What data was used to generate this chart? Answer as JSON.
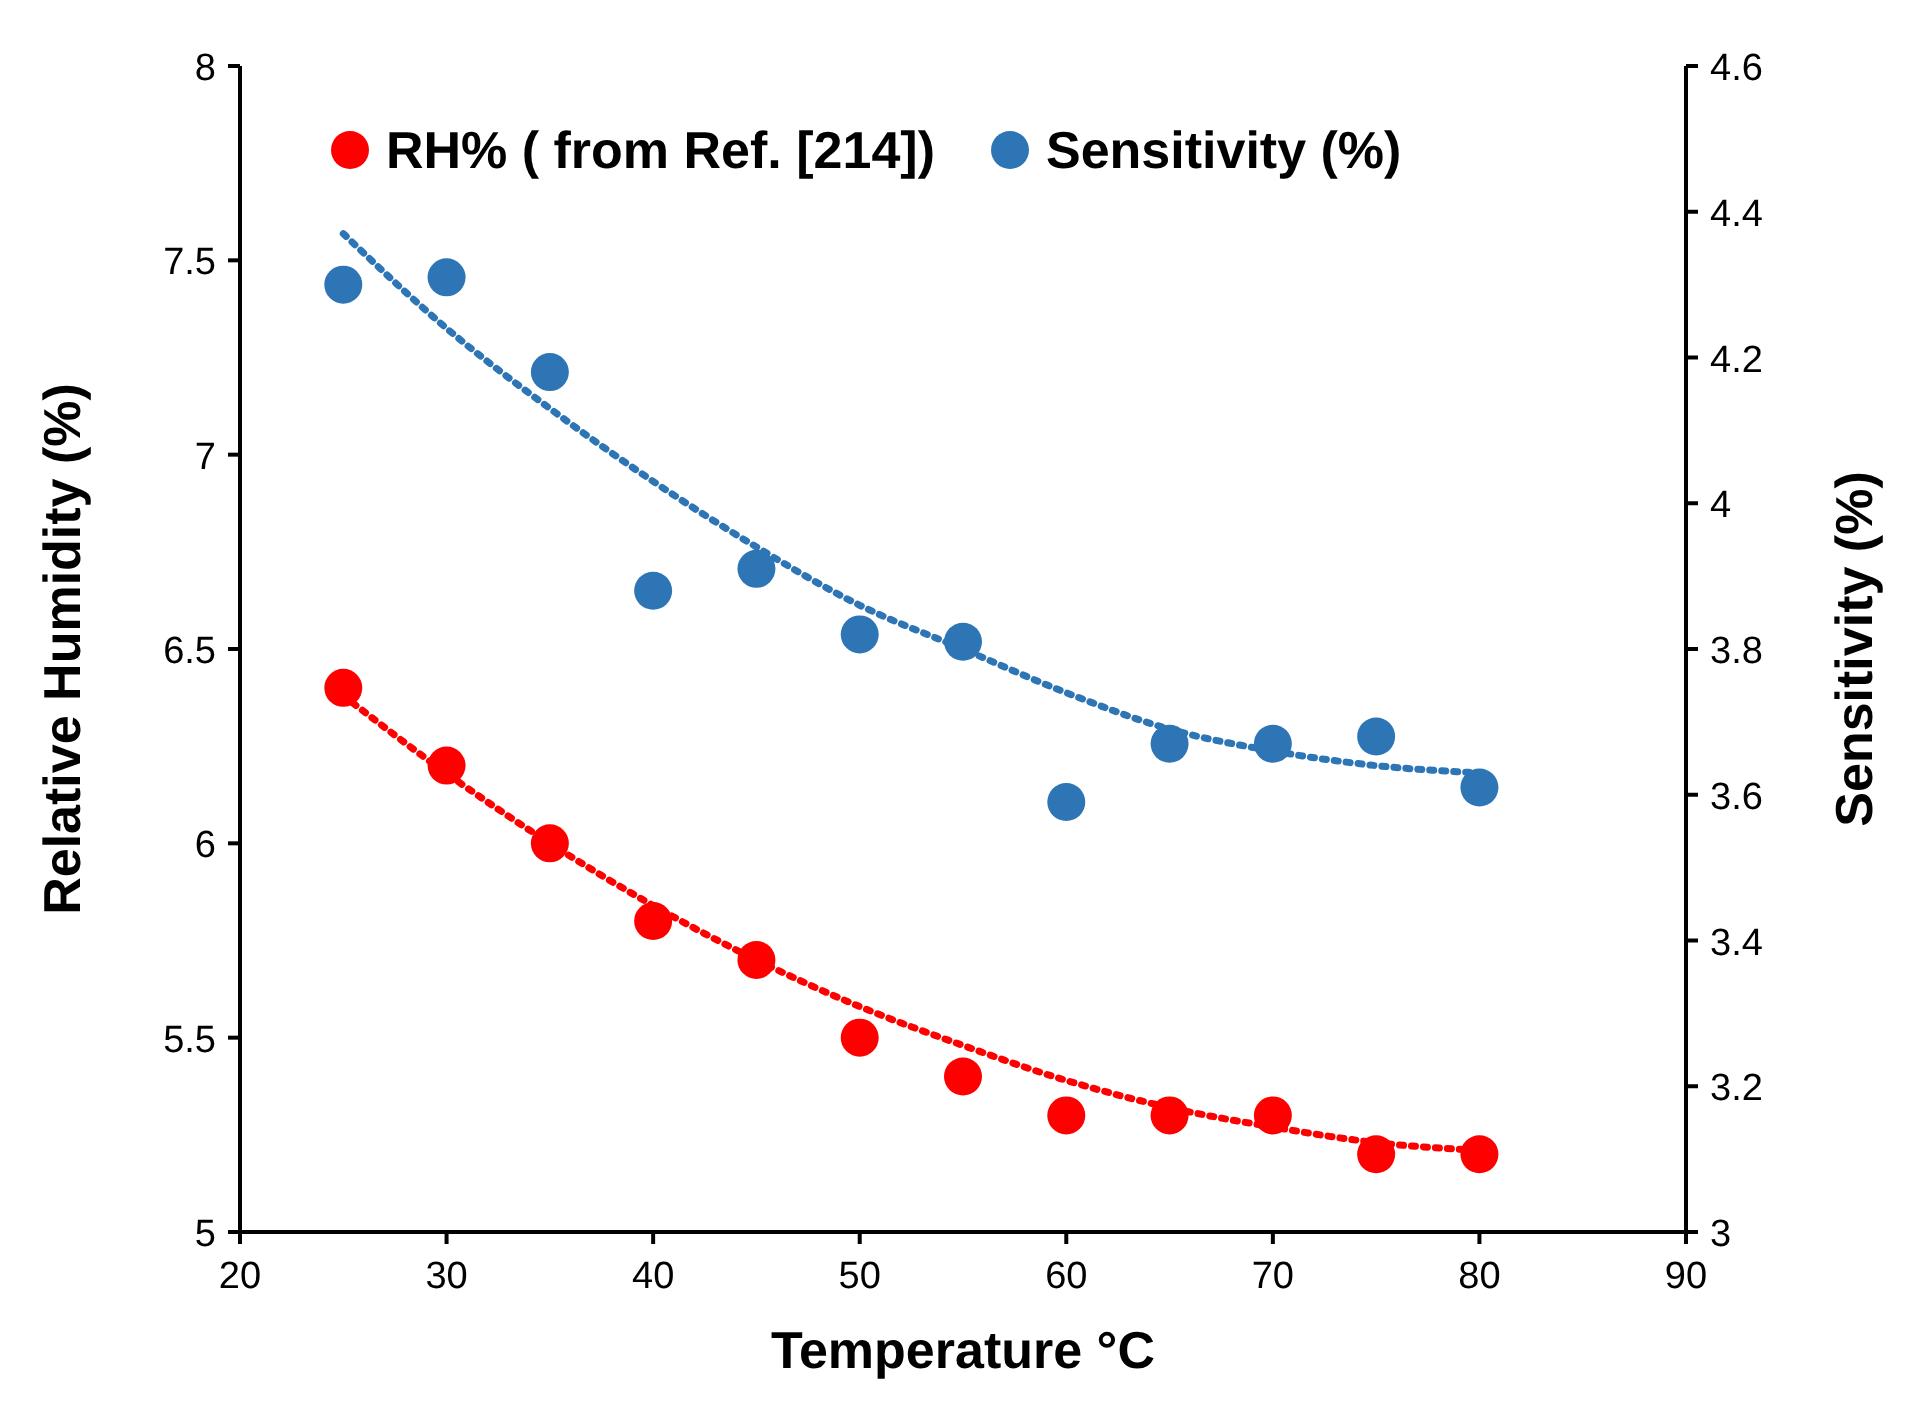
{
  "chart_data": {
    "type": "scatter",
    "xlabel": "Temperature °C",
    "ylabel": "Relative Humidity (%)",
    "y2label": "Sensitivity (%)",
    "xlim": [
      20,
      90
    ],
    "xticks": [
      20,
      30,
      40,
      50,
      60,
      70,
      80,
      90
    ],
    "ylim": [
      5,
      8
    ],
    "yticks": [
      5,
      5.5,
      6,
      6.5,
      7,
      7.5,
      8
    ],
    "y2lim": [
      3,
      4.6
    ],
    "y2ticks": [
      3,
      3.2,
      3.4,
      3.6,
      3.8,
      4,
      4.2,
      4.4,
      4.6
    ],
    "legend": "top",
    "grid": false,
    "x": [
      25,
      30,
      35,
      40,
      45,
      50,
      55,
      60,
      65,
      70,
      75,
      80
    ],
    "series": [
      {
        "name": "RH% ( from Ref. [214])",
        "color": "#ff0000",
        "marker": "circle",
        "values": [
          6.4,
          6.2,
          6.0,
          5.8,
          5.7,
          5.5,
          5.4,
          5.3,
          5.3,
          5.3,
          5.2,
          5.2
        ]
      },
      {
        "name": "Sensitivity (%)",
        "color": "#2e75b6",
        "marker": "circle",
        "axis": "y2",
        "values": [
          4.3,
          4.31,
          4.18,
          3.88,
          3.91,
          3.82,
          3.81,
          3.59,
          3.67,
          3.67,
          3.68,
          3.61
        ]
      },
      {
        "color": "#ff0000",
        "type": "line",
        "line_style": "dotted",
        "values": [
          6.38,
          6.18,
          6.0,
          5.84,
          5.7,
          5.58,
          5.48,
          5.39,
          5.32,
          5.27,
          5.23,
          5.21
        ]
      },
      {
        "color": "#2e75b6",
        "type": "line",
        "line_style": "dotted",
        "axis": "y2",
        "values": [
          4.37,
          4.24,
          4.13,
          4.03,
          3.94,
          3.86,
          3.8,
          3.74,
          3.69,
          3.66,
          3.64,
          3.63
        ]
      }
    ]
  }
}
